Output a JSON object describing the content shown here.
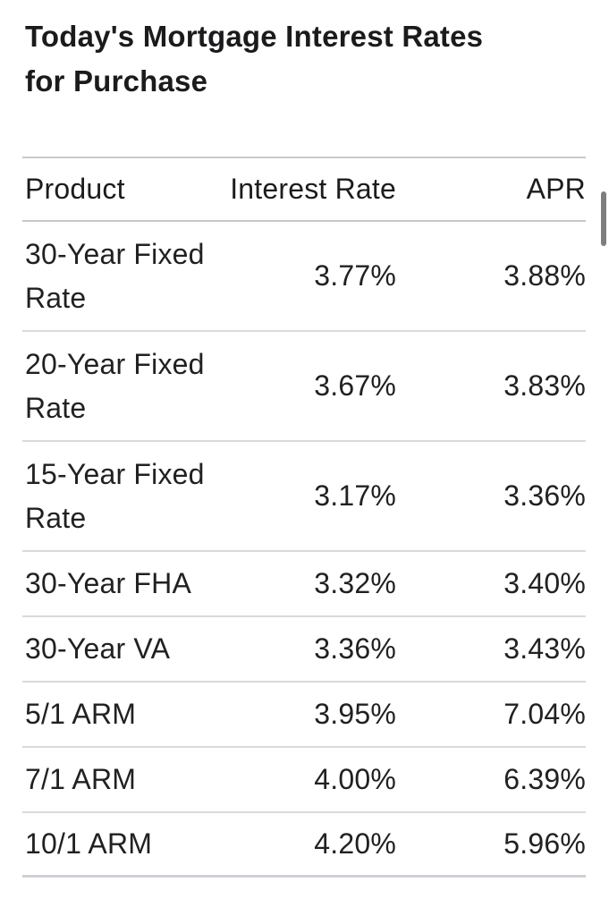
{
  "page": {
    "title_lines": [
      "Today's Mortgage Interest Rates",
      "for Purchase"
    ]
  },
  "colors": {
    "text": "#1d1d1f",
    "separator": "#dadade",
    "table_top_border": "#c9c9cf",
    "table_bottom_border": "#ced0d8",
    "scrollbar_thumb": "#7e7e80",
    "background": "#ffffff"
  },
  "scrollbar": {
    "thumb": "vertical-scrollbar-thumb"
  },
  "table": {
    "columns": [
      {
        "label": "Product"
      },
      {
        "label": "Interest Rate"
      },
      {
        "label": "APR"
      }
    ],
    "rows": [
      {
        "product": "30-Year Fixed Rate",
        "interest_rate": "3.77%",
        "apr": "3.88%"
      },
      {
        "product": "20-Year Fixed Rate",
        "interest_rate": "3.67%",
        "apr": "3.83%"
      },
      {
        "product": "15-Year Fixed Rate",
        "interest_rate": "3.17%",
        "apr": "3.36%"
      },
      {
        "product": "30-Year FHA",
        "interest_rate": "3.32%",
        "apr": "3.40%"
      },
      {
        "product": "30-Year VA",
        "interest_rate": "3.36%",
        "apr": "3.43%"
      },
      {
        "product": "5/1 ARM",
        "interest_rate": "3.95%",
        "apr": "7.04%"
      },
      {
        "product": "7/1 ARM",
        "interest_rate": "4.00%",
        "apr": "6.39%"
      },
      {
        "product": "10/1 ARM",
        "interest_rate": "4.20%",
        "apr": "5.96%"
      }
    ]
  }
}
